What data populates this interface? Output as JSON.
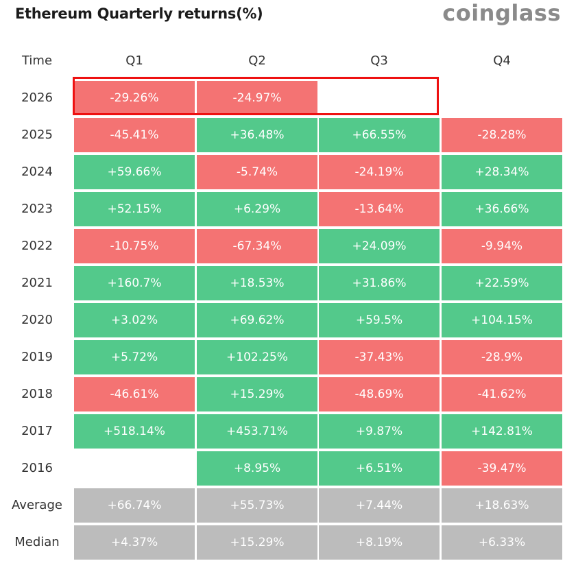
{
  "header": {
    "title": "Ethereum Quarterly returns(%)",
    "brand": "coinglass"
  },
  "table": {
    "time_label": "Time",
    "columns": [
      "Q1",
      "Q2",
      "Q3",
      "Q4"
    ],
    "rows": [
      {
        "year": "2026",
        "values": [
          "-29.26%",
          "-24.97%",
          "",
          ""
        ]
      },
      {
        "year": "2025",
        "values": [
          "-45.41%",
          "+36.48%",
          "+66.55%",
          "-28.28%"
        ]
      },
      {
        "year": "2024",
        "values": [
          "+59.66%",
          "-5.74%",
          "-24.19%",
          "+28.34%"
        ]
      },
      {
        "year": "2023",
        "values": [
          "+52.15%",
          "+6.29%",
          "-13.64%",
          "+36.66%"
        ]
      },
      {
        "year": "2022",
        "values": [
          "-10.75%",
          "-67.34%",
          "+24.09%",
          "-9.94%"
        ]
      },
      {
        "year": "2021",
        "values": [
          "+160.7%",
          "+18.53%",
          "+31.86%",
          "+22.59%"
        ]
      },
      {
        "year": "2020",
        "values": [
          "+3.02%",
          "+69.62%",
          "+59.5%",
          "+104.15%"
        ]
      },
      {
        "year": "2019",
        "values": [
          "+5.72%",
          "+102.25%",
          "-37.43%",
          "-28.9%"
        ]
      },
      {
        "year": "2018",
        "values": [
          "-46.61%",
          "+15.29%",
          "-48.69%",
          "-41.62%"
        ]
      },
      {
        "year": "2017",
        "values": [
          "+518.14%",
          "+453.71%",
          "+9.87%",
          "+142.81%"
        ]
      },
      {
        "year": "2016",
        "values": [
          "",
          "+8.95%",
          "+6.51%",
          "-39.47%"
        ]
      }
    ],
    "summary": [
      {
        "label": "Average",
        "values": [
          "+66.74%",
          "+55.73%",
          "+7.44%",
          "+18.63%"
        ]
      },
      {
        "label": "Median",
        "values": [
          "+4.37%",
          "+15.29%",
          "+8.19%",
          "+6.33%"
        ]
      }
    ]
  },
  "colors": {
    "positive": "#53c98b",
    "negative": "#f47373",
    "summary": "#bcbcbc",
    "highlight": "#ee1111"
  },
  "chart_data": {
    "type": "table",
    "title": "Ethereum Quarterly returns(%)",
    "columns": [
      "Q1",
      "Q2",
      "Q3",
      "Q4"
    ],
    "rows": [
      {
        "year": "2026",
        "values": [
          -29.26,
          -24.97,
          null,
          null
        ]
      },
      {
        "year": "2025",
        "values": [
          -45.41,
          36.48,
          66.55,
          -28.28
        ]
      },
      {
        "year": "2024",
        "values": [
          59.66,
          -5.74,
          -24.19,
          28.34
        ]
      },
      {
        "year": "2023",
        "values": [
          52.15,
          6.29,
          -13.64,
          36.66
        ]
      },
      {
        "year": "2022",
        "values": [
          -10.75,
          -67.34,
          24.09,
          -9.94
        ]
      },
      {
        "year": "2021",
        "values": [
          160.7,
          18.53,
          31.86,
          22.59
        ]
      },
      {
        "year": "2020",
        "values": [
          3.02,
          69.62,
          59.5,
          104.15
        ]
      },
      {
        "year": "2019",
        "values": [
          5.72,
          102.25,
          -37.43,
          -28.9
        ]
      },
      {
        "year": "2018",
        "values": [
          -46.61,
          15.29,
          -48.69,
          -41.62
        ]
      },
      {
        "year": "2017",
        "values": [
          518.14,
          453.71,
          9.87,
          142.81
        ]
      },
      {
        "year": "2016",
        "values": [
          null,
          8.95,
          6.51,
          -39.47
        ]
      }
    ],
    "average": [
      66.74,
      55.73,
      7.44,
      18.63
    ],
    "median": [
      4.37,
      15.29,
      8.19,
      6.33
    ]
  }
}
